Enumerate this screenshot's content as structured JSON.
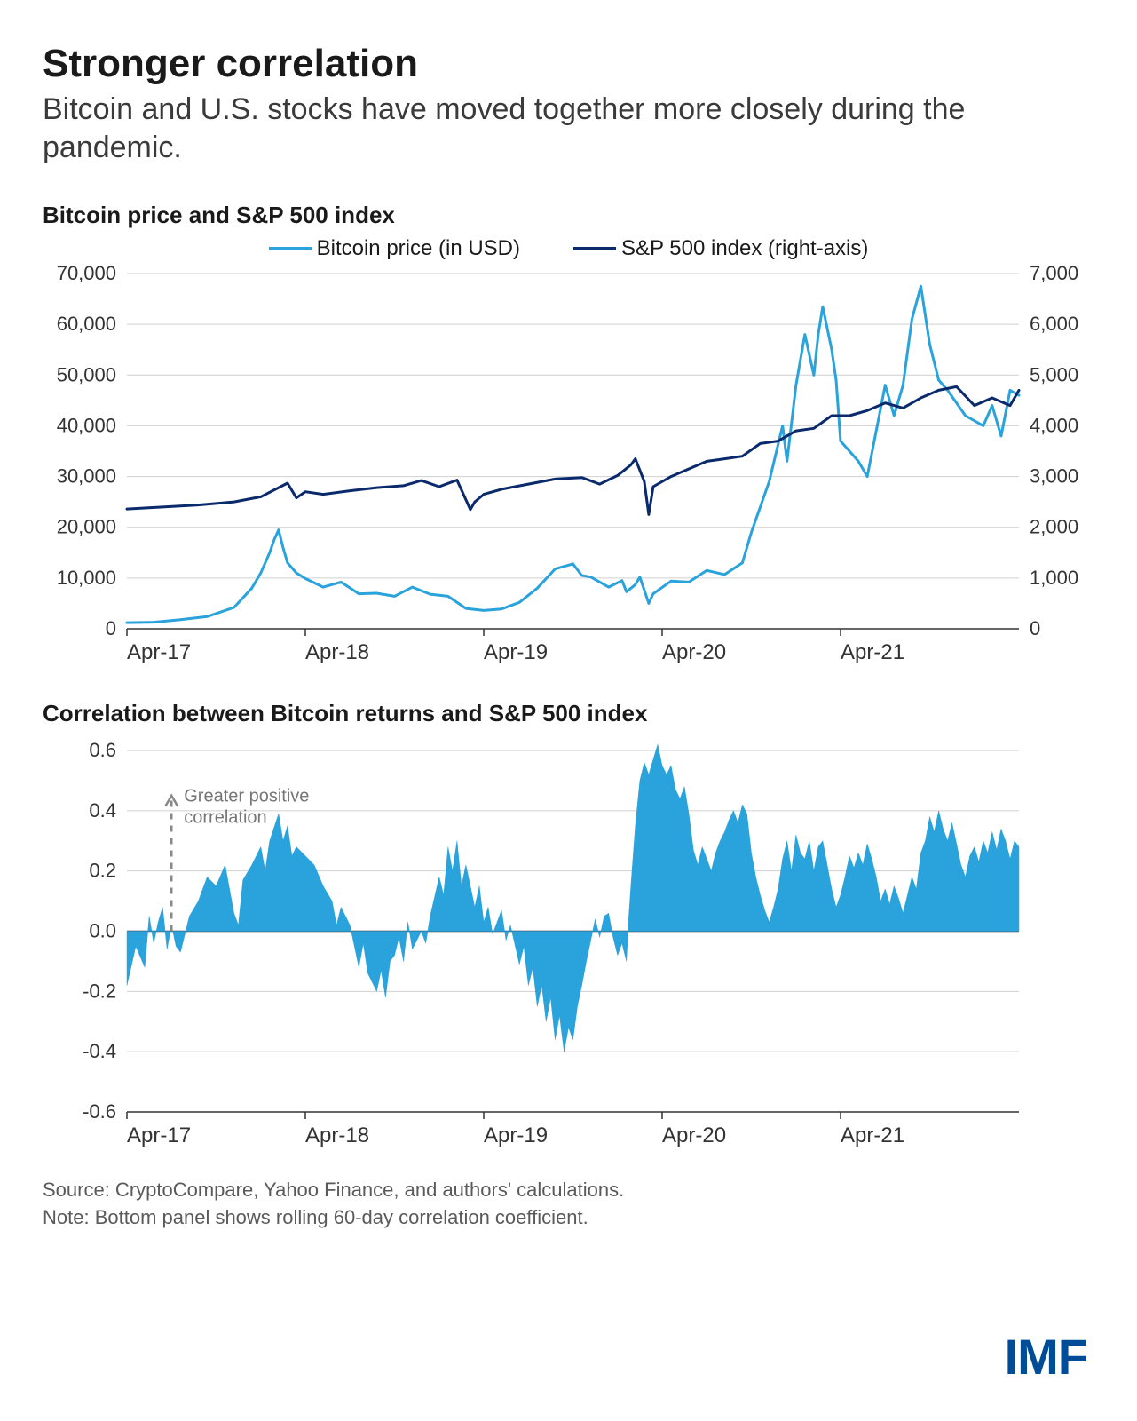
{
  "header": {
    "title": "Stronger correlation",
    "subtitle": "Bitcoin and U.S. stocks have moved together more closely during the pandemic."
  },
  "chart1": {
    "type": "line",
    "title": "Bitcoin price and S&P 500 index",
    "legend": [
      {
        "label": "Bitcoin price (in USD)",
        "color": "#2aa3dc"
      },
      {
        "label": "S&P 500 index (right-axis)",
        "color": "#0b2a6b"
      }
    ],
    "x_labels": [
      "Apr-17",
      "Apr-18",
      "Apr-19",
      "Apr-20",
      "Apr-21"
    ],
    "y_left": {
      "min": 0,
      "max": 70000,
      "step": 10000
    },
    "y_right": {
      "min": 0,
      "max": 7000,
      "step": 1000
    },
    "background_color": "#ffffff",
    "grid_color": "#d0d0d0",
    "line_width": 3,
    "series_bitcoin": {
      "color": "#2aa3dc",
      "data": [
        [
          0.0,
          1200
        ],
        [
          0.03,
          1300
        ],
        [
          0.06,
          1800
        ],
        [
          0.09,
          2400
        ],
        [
          0.12,
          4200
        ],
        [
          0.14,
          8000
        ],
        [
          0.15,
          11000
        ],
        [
          0.16,
          15000
        ],
        [
          0.165,
          17500
        ],
        [
          0.17,
          19500
        ],
        [
          0.175,
          16000
        ],
        [
          0.18,
          13000
        ],
        [
          0.19,
          11000
        ],
        [
          0.2,
          9900
        ],
        [
          0.22,
          8200
        ],
        [
          0.24,
          9200
        ],
        [
          0.26,
          6900
        ],
        [
          0.28,
          7000
        ],
        [
          0.3,
          6400
        ],
        [
          0.32,
          8200
        ],
        [
          0.34,
          6800
        ],
        [
          0.36,
          6400
        ],
        [
          0.38,
          4000
        ],
        [
          0.4,
          3600
        ],
        [
          0.42,
          3900
        ],
        [
          0.44,
          5200
        ],
        [
          0.46,
          8000
        ],
        [
          0.48,
          11800
        ],
        [
          0.5,
          12800
        ],
        [
          0.51,
          10500
        ],
        [
          0.52,
          10200
        ],
        [
          0.54,
          8200
        ],
        [
          0.555,
          9500
        ],
        [
          0.56,
          7300
        ],
        [
          0.57,
          8700
        ],
        [
          0.575,
          10200
        ],
        [
          0.585,
          5000
        ],
        [
          0.59,
          6900
        ],
        [
          0.61,
          9400
        ],
        [
          0.63,
          9200
        ],
        [
          0.65,
          11500
        ],
        [
          0.67,
          10700
        ],
        [
          0.69,
          13000
        ],
        [
          0.7,
          19000
        ],
        [
          0.72,
          29000
        ],
        [
          0.735,
          40000
        ],
        [
          0.74,
          33000
        ],
        [
          0.75,
          48000
        ],
        [
          0.76,
          58000
        ],
        [
          0.77,
          50000
        ],
        [
          0.775,
          58000
        ],
        [
          0.78,
          63500
        ],
        [
          0.79,
          55000
        ],
        [
          0.795,
          49000
        ],
        [
          0.8,
          37000
        ],
        [
          0.81,
          35000
        ],
        [
          0.82,
          33000
        ],
        [
          0.83,
          30000
        ],
        [
          0.84,
          39000
        ],
        [
          0.85,
          48000
        ],
        [
          0.86,
          42000
        ],
        [
          0.87,
          48000
        ],
        [
          0.88,
          61000
        ],
        [
          0.89,
          67500
        ],
        [
          0.9,
          56000
        ],
        [
          0.91,
          49000
        ],
        [
          0.92,
          47000
        ],
        [
          0.94,
          42000
        ],
        [
          0.96,
          40000
        ],
        [
          0.97,
          44000
        ],
        [
          0.98,
          38000
        ],
        [
          0.99,
          47000
        ],
        [
          1.0,
          46000
        ]
      ]
    },
    "series_sp500": {
      "color": "#0b2a6b",
      "data": [
        [
          0.0,
          2360
        ],
        [
          0.04,
          2400
        ],
        [
          0.08,
          2440
        ],
        [
          0.12,
          2500
        ],
        [
          0.15,
          2600
        ],
        [
          0.18,
          2870
        ],
        [
          0.19,
          2580
        ],
        [
          0.2,
          2700
        ],
        [
          0.22,
          2650
        ],
        [
          0.25,
          2720
        ],
        [
          0.28,
          2780
        ],
        [
          0.31,
          2820
        ],
        [
          0.33,
          2920
        ],
        [
          0.35,
          2800
        ],
        [
          0.37,
          2930
        ],
        [
          0.385,
          2350
        ],
        [
          0.39,
          2500
        ],
        [
          0.4,
          2650
        ],
        [
          0.42,
          2750
        ],
        [
          0.45,
          2850
        ],
        [
          0.48,
          2950
        ],
        [
          0.51,
          2980
        ],
        [
          0.53,
          2850
        ],
        [
          0.55,
          3020
        ],
        [
          0.565,
          3230
        ],
        [
          0.57,
          3350
        ],
        [
          0.58,
          2900
        ],
        [
          0.585,
          2250
        ],
        [
          0.59,
          2800
        ],
        [
          0.61,
          3000
        ],
        [
          0.63,
          3150
        ],
        [
          0.65,
          3300
        ],
        [
          0.67,
          3350
        ],
        [
          0.69,
          3400
        ],
        [
          0.71,
          3650
        ],
        [
          0.73,
          3700
        ],
        [
          0.75,
          3900
        ],
        [
          0.77,
          3950
        ],
        [
          0.79,
          4200
        ],
        [
          0.81,
          4200
        ],
        [
          0.83,
          4300
        ],
        [
          0.85,
          4450
        ],
        [
          0.87,
          4350
        ],
        [
          0.89,
          4550
        ],
        [
          0.91,
          4700
        ],
        [
          0.93,
          4770
        ],
        [
          0.95,
          4400
        ],
        [
          0.97,
          4550
        ],
        [
          0.99,
          4400
        ],
        [
          1.0,
          4700
        ]
      ]
    }
  },
  "chart2": {
    "type": "area",
    "title": "Correlation between Bitcoin returns and S&P 500 index",
    "x_labels": [
      "Apr-17",
      "Apr-18",
      "Apr-19",
      "Apr-20",
      "Apr-21"
    ],
    "y": {
      "min": -0.6,
      "max": 0.6,
      "step": 0.2
    },
    "annotation": "Greater positive correlation",
    "fill_color": "#2aa3dc",
    "grid_color": "#d0d0d0",
    "line_width": 1,
    "data": [
      [
        0.0,
        -0.18
      ],
      [
        0.01,
        -0.05
      ],
      [
        0.02,
        -0.12
      ],
      [
        0.025,
        0.05
      ],
      [
        0.03,
        -0.04
      ],
      [
        0.035,
        0.03
      ],
      [
        0.04,
        0.08
      ],
      [
        0.045,
        -0.06
      ],
      [
        0.05,
        0.02
      ],
      [
        0.055,
        -0.05
      ],
      [
        0.06,
        -0.07
      ],
      [
        0.07,
        0.05
      ],
      [
        0.08,
        0.1
      ],
      [
        0.09,
        0.18
      ],
      [
        0.1,
        0.15
      ],
      [
        0.11,
        0.22
      ],
      [
        0.12,
        0.06
      ],
      [
        0.125,
        0.02
      ],
      [
        0.13,
        0.17
      ],
      [
        0.14,
        0.22
      ],
      [
        0.15,
        0.28
      ],
      [
        0.155,
        0.2
      ],
      [
        0.16,
        0.3
      ],
      [
        0.17,
        0.39
      ],
      [
        0.175,
        0.3
      ],
      [
        0.18,
        0.35
      ],
      [
        0.185,
        0.25
      ],
      [
        0.19,
        0.28
      ],
      [
        0.2,
        0.25
      ],
      [
        0.21,
        0.22
      ],
      [
        0.22,
        0.15
      ],
      [
        0.23,
        0.1
      ],
      [
        0.235,
        0.02
      ],
      [
        0.24,
        0.08
      ],
      [
        0.25,
        0.02
      ],
      [
        0.255,
        -0.05
      ],
      [
        0.26,
        -0.12
      ],
      [
        0.265,
        -0.04
      ],
      [
        0.27,
        -0.14
      ],
      [
        0.28,
        -0.2
      ],
      [
        0.285,
        -0.13
      ],
      [
        0.29,
        -0.22
      ],
      [
        0.295,
        -0.1
      ],
      [
        0.3,
        -0.08
      ],
      [
        0.305,
        -0.02
      ],
      [
        0.31,
        -0.1
      ],
      [
        0.315,
        0.03
      ],
      [
        0.32,
        -0.06
      ],
      [
        0.33,
        0.0
      ],
      [
        0.335,
        -0.04
      ],
      [
        0.34,
        0.05
      ],
      [
        0.35,
        0.18
      ],
      [
        0.355,
        0.12
      ],
      [
        0.36,
        0.28
      ],
      [
        0.365,
        0.2
      ],
      [
        0.37,
        0.3
      ],
      [
        0.375,
        0.15
      ],
      [
        0.38,
        0.22
      ],
      [
        0.39,
        0.08
      ],
      [
        0.395,
        0.15
      ],
      [
        0.4,
        0.03
      ],
      [
        0.405,
        0.08
      ],
      [
        0.41,
        -0.01
      ],
      [
        0.42,
        0.07
      ],
      [
        0.425,
        -0.03
      ],
      [
        0.43,
        0.02
      ],
      [
        0.44,
        -0.11
      ],
      [
        0.445,
        -0.05
      ],
      [
        0.45,
        -0.18
      ],
      [
        0.455,
        -0.12
      ],
      [
        0.46,
        -0.25
      ],
      [
        0.465,
        -0.18
      ],
      [
        0.47,
        -0.3
      ],
      [
        0.475,
        -0.22
      ],
      [
        0.48,
        -0.36
      ],
      [
        0.485,
        -0.28
      ],
      [
        0.49,
        -0.4
      ],
      [
        0.495,
        -0.32
      ],
      [
        0.5,
        -0.36
      ],
      [
        0.505,
        -0.25
      ],
      [
        0.51,
        -0.18
      ],
      [
        0.515,
        -0.1
      ],
      [
        0.52,
        -0.03
      ],
      [
        0.525,
        0.04
      ],
      [
        0.53,
        -0.02
      ],
      [
        0.535,
        0.05
      ],
      [
        0.54,
        0.06
      ],
      [
        0.545,
        -0.02
      ],
      [
        0.55,
        -0.08
      ],
      [
        0.555,
        -0.04
      ],
      [
        0.56,
        -0.1
      ],
      [
        0.562,
        0.02
      ],
      [
        0.565,
        0.15
      ],
      [
        0.57,
        0.35
      ],
      [
        0.575,
        0.5
      ],
      [
        0.58,
        0.56
      ],
      [
        0.585,
        0.52
      ],
      [
        0.59,
        0.57
      ],
      [
        0.595,
        0.62
      ],
      [
        0.6,
        0.55
      ],
      [
        0.605,
        0.52
      ],
      [
        0.61,
        0.55
      ],
      [
        0.615,
        0.47
      ],
      [
        0.62,
        0.44
      ],
      [
        0.625,
        0.48
      ],
      [
        0.63,
        0.39
      ],
      [
        0.635,
        0.27
      ],
      [
        0.64,
        0.22
      ],
      [
        0.645,
        0.28
      ],
      [
        0.65,
        0.24
      ],
      [
        0.655,
        0.2
      ],
      [
        0.66,
        0.26
      ],
      [
        0.665,
        0.3
      ],
      [
        0.67,
        0.33
      ],
      [
        0.675,
        0.37
      ],
      [
        0.68,
        0.4
      ],
      [
        0.685,
        0.36
      ],
      [
        0.69,
        0.42
      ],
      [
        0.695,
        0.39
      ],
      [
        0.7,
        0.26
      ],
      [
        0.705,
        0.18
      ],
      [
        0.71,
        0.12
      ],
      [
        0.715,
        0.07
      ],
      [
        0.72,
        0.03
      ],
      [
        0.725,
        0.08
      ],
      [
        0.73,
        0.14
      ],
      [
        0.735,
        0.24
      ],
      [
        0.74,
        0.3
      ],
      [
        0.745,
        0.2
      ],
      [
        0.75,
        0.32
      ],
      [
        0.755,
        0.26
      ],
      [
        0.76,
        0.24
      ],
      [
        0.765,
        0.3
      ],
      [
        0.77,
        0.2
      ],
      [
        0.775,
        0.28
      ],
      [
        0.78,
        0.3
      ],
      [
        0.79,
        0.14
      ],
      [
        0.795,
        0.08
      ],
      [
        0.8,
        0.12
      ],
      [
        0.805,
        0.18
      ],
      [
        0.81,
        0.25
      ],
      [
        0.815,
        0.21
      ],
      [
        0.82,
        0.26
      ],
      [
        0.825,
        0.22
      ],
      [
        0.83,
        0.29
      ],
      [
        0.835,
        0.24
      ],
      [
        0.84,
        0.18
      ],
      [
        0.845,
        0.1
      ],
      [
        0.85,
        0.14
      ],
      [
        0.855,
        0.09
      ],
      [
        0.86,
        0.15
      ],
      [
        0.865,
        0.11
      ],
      [
        0.87,
        0.06
      ],
      [
        0.875,
        0.12
      ],
      [
        0.88,
        0.18
      ],
      [
        0.885,
        0.14
      ],
      [
        0.89,
        0.26
      ],
      [
        0.895,
        0.3
      ],
      [
        0.9,
        0.38
      ],
      [
        0.905,
        0.33
      ],
      [
        0.91,
        0.4
      ],
      [
        0.915,
        0.34
      ],
      [
        0.92,
        0.3
      ],
      [
        0.925,
        0.36
      ],
      [
        0.93,
        0.29
      ],
      [
        0.935,
        0.22
      ],
      [
        0.94,
        0.18
      ],
      [
        0.945,
        0.25
      ],
      [
        0.95,
        0.28
      ],
      [
        0.955,
        0.23
      ],
      [
        0.96,
        0.3
      ],
      [
        0.965,
        0.26
      ],
      [
        0.97,
        0.33
      ],
      [
        0.975,
        0.27
      ],
      [
        0.98,
        0.34
      ],
      [
        0.985,
        0.3
      ],
      [
        0.99,
        0.24
      ],
      [
        0.995,
        0.3
      ],
      [
        1.0,
        0.28
      ]
    ]
  },
  "footer": {
    "source": "Source: CryptoCompare, Yahoo Finance, and authors' calculations.",
    "note": "Note: Bottom panel shows rolling 60-day correlation coefficient.",
    "logo": "IMF"
  }
}
